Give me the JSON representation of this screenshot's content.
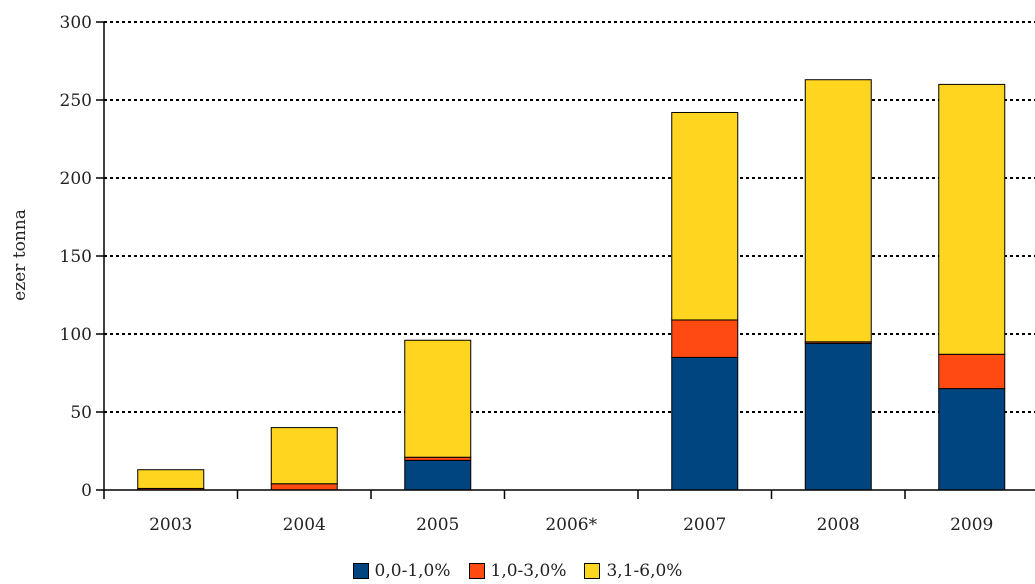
{
  "chart_data": {
    "type": "bar",
    "stacked": true,
    "title": "",
    "xlabel": "",
    "ylabel": "ezer tonna",
    "ylim": [
      0,
      300
    ],
    "yticks": [
      0,
      50,
      100,
      150,
      200,
      250,
      300
    ],
    "grid": "horizontal dotted",
    "legend_position": "bottom",
    "categories": [
      "2003",
      "2004",
      "2005",
      "2006*",
      "2007",
      "2008",
      "2009"
    ],
    "series": [
      {
        "name": "0,0-1,0%",
        "color": "#00457F",
        "values": [
          0,
          0,
          19,
          0,
          85,
          94,
          65
        ]
      },
      {
        "name": "1,0-3,0%",
        "color": "#FF4A12",
        "values": [
          1,
          4,
          2,
          0,
          24,
          1,
          22
        ]
      },
      {
        "name": "3,1-6,0%",
        "color": "#FFD520",
        "values": [
          12,
          36,
          75,
          0,
          133,
          168,
          173
        ]
      }
    ]
  }
}
